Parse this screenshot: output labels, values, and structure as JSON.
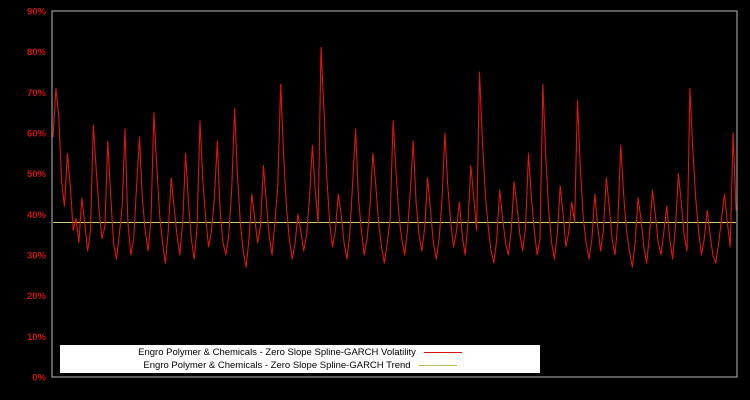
{
  "chart_data": {
    "type": "line",
    "title": "",
    "xlabel": "",
    "ylabel": "",
    "ylim": [
      0,
      90
    ],
    "y_tick_step": 10,
    "y_ticks": [
      "0%",
      "10%",
      "20%",
      "30%",
      "40%",
      "50%",
      "60%",
      "70%",
      "80%",
      "90%"
    ],
    "grid": false,
    "legend_position": "bottom-center",
    "colors": {
      "background": "#000000",
      "frame": "#b8b8b8",
      "axis_labels": "#cc1111",
      "volatility_line": "#dd1414",
      "trend_line": "#cdcd72",
      "legend_background": "#ffffff",
      "legend_text": "#000000"
    },
    "series": [
      {
        "name": "Engro Polymer & Chemicals - Zero Slope Spline-GARCH Volatility",
        "color": "#dd1414",
        "kind": "line",
        "values": [
          59,
          71,
          64,
          48,
          42,
          55,
          47,
          36,
          39,
          33,
          44,
          38,
          31,
          36,
          62,
          51,
          41,
          34,
          37,
          58,
          45,
          33,
          29,
          35,
          42,
          61,
          38,
          30,
          34,
          47,
          59,
          44,
          36,
          31,
          39,
          65,
          52,
          40,
          33,
          28,
          36,
          49,
          42,
          35,
          30,
          38,
          55,
          43,
          34,
          29,
          37,
          63,
          48,
          39,
          32,
          36,
          44,
          58,
          41,
          33,
          30,
          35,
          46,
          66,
          50,
          38,
          31,
          27,
          34,
          45,
          39,
          33,
          37,
          52,
          43,
          35,
          30,
          38,
          47,
          72,
          55,
          42,
          34,
          29,
          33,
          40,
          36,
          31,
          35,
          44,
          57,
          46,
          38,
          81,
          66,
          49,
          38,
          32,
          36,
          45,
          40,
          33,
          29,
          35,
          48,
          61,
          44,
          36,
          30,
          34,
          42,
          55,
          47,
          38,
          32,
          28,
          33,
          39,
          63,
          51,
          40,
          34,
          30,
          36,
          46,
          58,
          43,
          35,
          31,
          37,
          49,
          41,
          33,
          29,
          34,
          44,
          60,
          47,
          38,
          32,
          36,
          43,
          35,
          30,
          38,
          52,
          44,
          36,
          75,
          58,
          45,
          37,
          31,
          28,
          34,
          46,
          39,
          33,
          30,
          36,
          48,
          42,
          35,
          31,
          37,
          55,
          44,
          36,
          30,
          34,
          72,
          54,
          41,
          33,
          29,
          35,
          47,
          40,
          32,
          36,
          43,
          38,
          68,
          51,
          39,
          33,
          29,
          34,
          45,
          37,
          31,
          36,
          49,
          42,
          34,
          30,
          38,
          57,
          45,
          36,
          31,
          27,
          33,
          44,
          39,
          32,
          28,
          35,
          46,
          40,
          33,
          30,
          36,
          42,
          34,
          29,
          37,
          50,
          43,
          35,
          31,
          71,
          56,
          44,
          36,
          30,
          34,
          41,
          35,
          30,
          28,
          33,
          39,
          45,
          38,
          32,
          60,
          41
        ]
      },
      {
        "name": "Engro Polymer & Chemicals - Zero Slope Spline-GARCH Trend",
        "color": "#b9b94e",
        "kind": "constant",
        "value": 38
      }
    ]
  }
}
